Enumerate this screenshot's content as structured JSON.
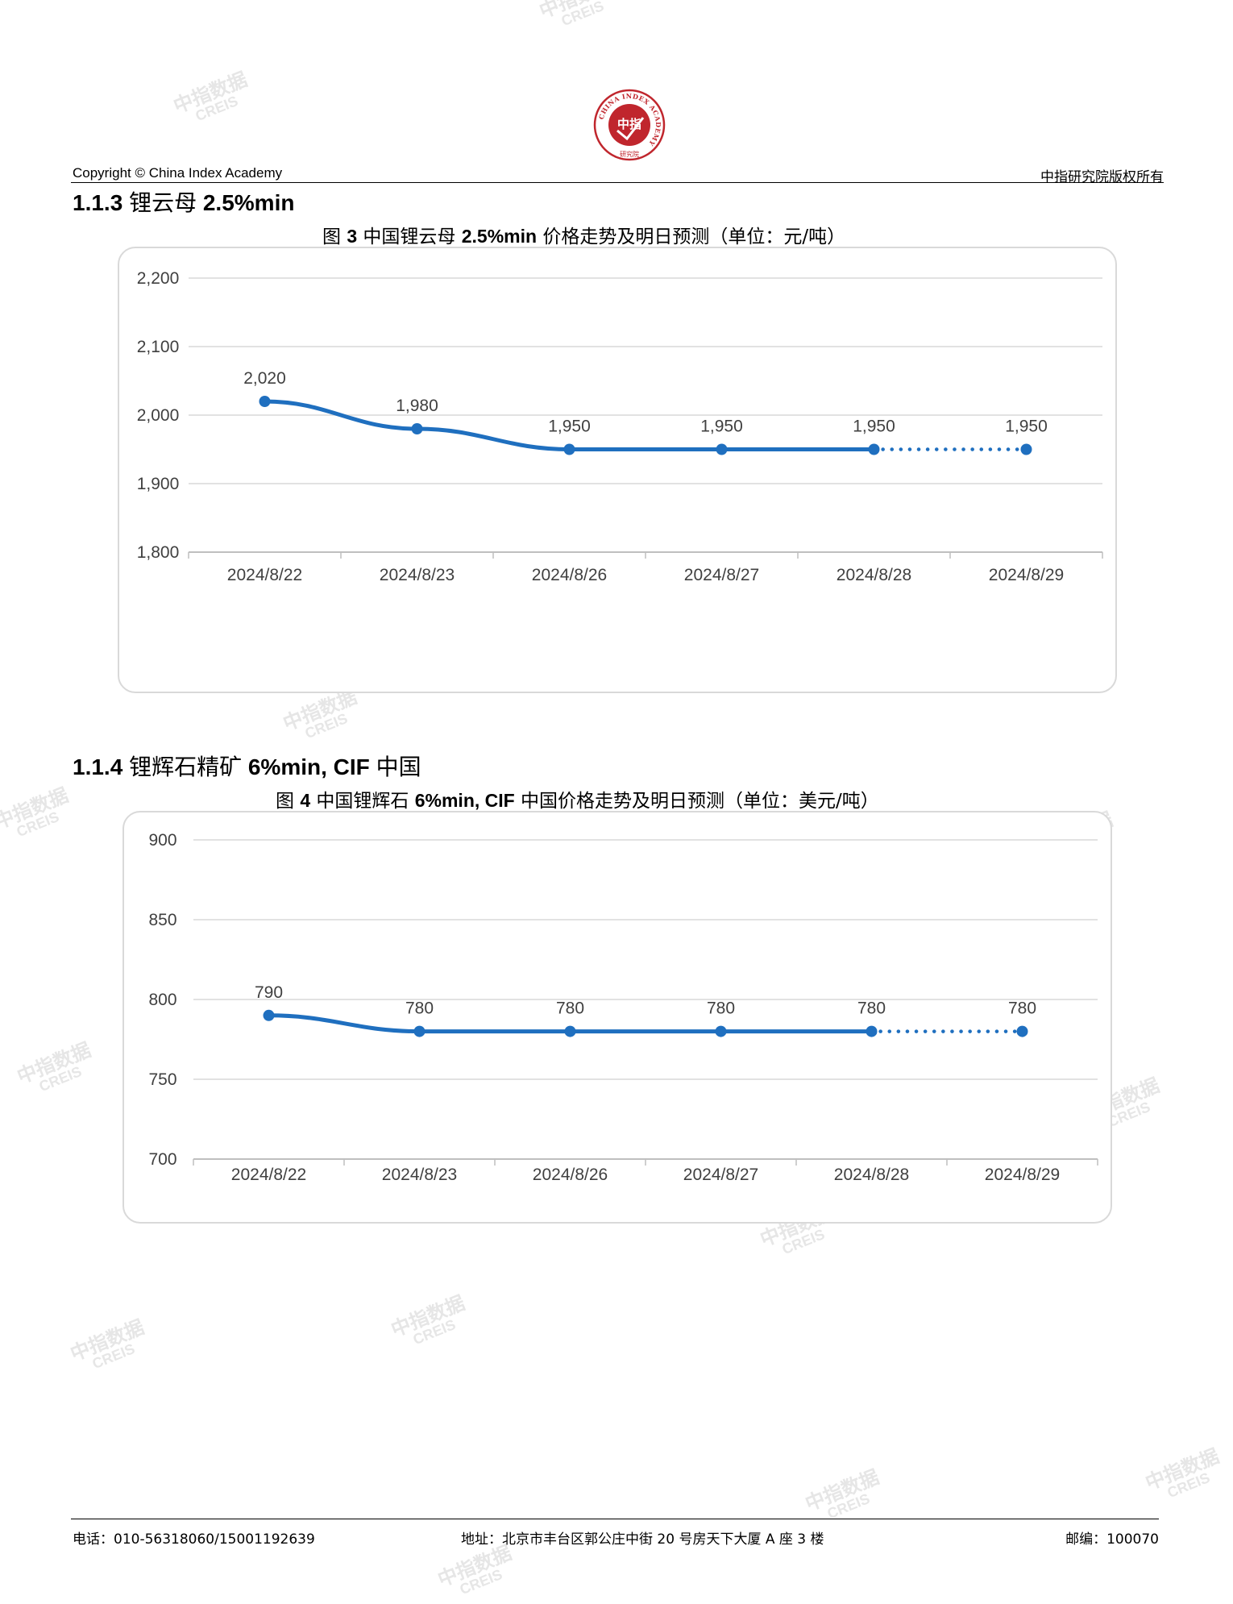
{
  "header": {
    "copyright": "Copyright © China Index Academy",
    "rights": "中指研究院版权所有",
    "logo": {
      "center_text": "中指",
      "ring_text": "CHINA INDEX ACADEMY",
      "bottom_text": "研究院",
      "color": "#c0262d"
    }
  },
  "watermark": {
    "line1": "中指数据",
    "line2": "CREIS"
  },
  "sections": [
    {
      "heading_num": "1.1.3",
      "heading_text": "锂云母",
      "heading_spec": "2.5%min",
      "figure_prefix": "图",
      "figure_num": "3",
      "figure_mid": "中国锂云母",
      "figure_spec": "2.5%min",
      "figure_tail": "价格走势及明日预测（单位：元/吨）"
    },
    {
      "heading_num": "1.1.4",
      "heading_text": "锂辉石精矿",
      "heading_spec": "6%min, CIF",
      "heading_tail": "中国",
      "figure_prefix": "图",
      "figure_num": "4",
      "figure_mid": "中国锂辉石",
      "figure_spec": "6%min, CIF",
      "figure_tail": "中国价格走势及明日预测（单位：美元/吨）"
    }
  ],
  "chart_data": [
    {
      "type": "line",
      "categories": [
        "2024/8/22",
        "2024/8/23",
        "2024/8/26",
        "2024/8/27",
        "2024/8/28",
        "2024/8/29"
      ],
      "values": [
        2020,
        1980,
        1950,
        1950,
        1950,
        1950
      ],
      "value_labels": [
        "2,020",
        "1,980",
        "1,950",
        "1,950",
        "1,950",
        "1,950"
      ],
      "forecast_from_index": 4,
      "ylim": [
        1800,
        2200
      ],
      "yticks": [
        1800,
        1900,
        2000,
        2100,
        2200
      ],
      "ytick_labels": [
        "1,800",
        "1,900",
        "2,000",
        "2,100",
        "2,200"
      ],
      "grid": true,
      "line_color": "#1f6fbf"
    },
    {
      "type": "line",
      "categories": [
        "2024/8/22",
        "2024/8/23",
        "2024/8/26",
        "2024/8/27",
        "2024/8/28",
        "2024/8/29"
      ],
      "values": [
        790,
        780,
        780,
        780,
        780,
        780
      ],
      "value_labels": [
        "790",
        "780",
        "780",
        "780",
        "780",
        "780"
      ],
      "forecast_from_index": 4,
      "ylim": [
        700,
        900
      ],
      "yticks": [
        700,
        750,
        800,
        850,
        900
      ],
      "ytick_labels": [
        "700",
        "750",
        "800",
        "850",
        "900"
      ],
      "grid": true,
      "line_color": "#1f6fbf"
    }
  ],
  "footer": {
    "phone": "电话：010-56318060/15001192639",
    "address": "地址：北京市丰台区郭公庄中街 20 号房天下大厦 A 座 3 楼",
    "postcode": "邮编：100070"
  }
}
